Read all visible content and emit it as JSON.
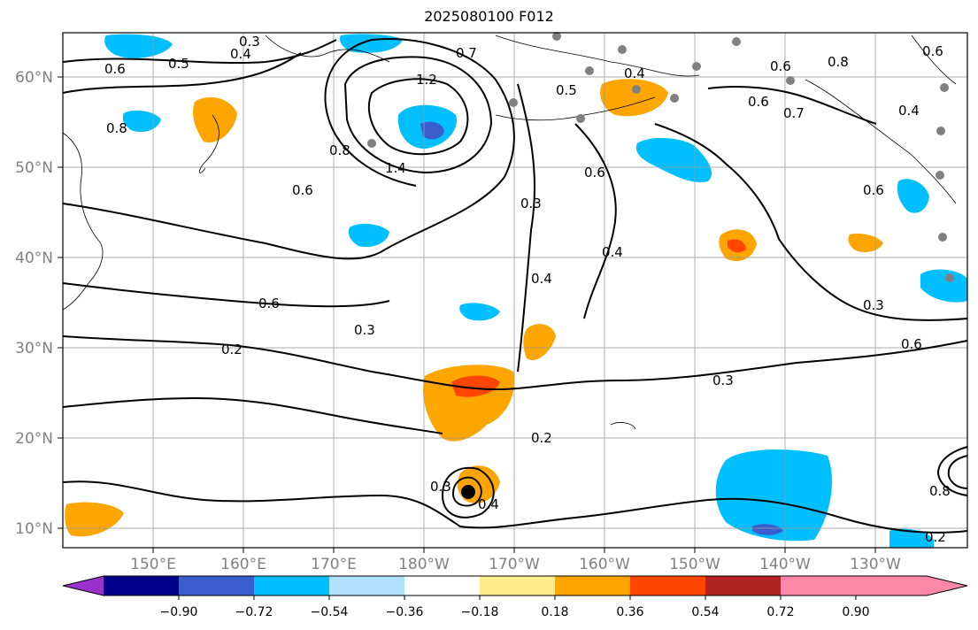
{
  "title": "2025080100 F012",
  "map": {
    "lon_ticks": [
      "150°E",
      "160°E",
      "170°E",
      "180°W",
      "170°W",
      "160°W",
      "150°W",
      "140°W",
      "130°W"
    ],
    "lat_ticks": [
      "60°N",
      "50°N",
      "40°N",
      "30°N",
      "20°N",
      "10°N"
    ],
    "grid": true,
    "contour_labels": [
      "0.3",
      "0.4",
      "0.5",
      "0.6",
      "0.6",
      "0.8",
      "0.8",
      "1.2",
      "1.4",
      "0.7",
      "0.4",
      "0.5",
      "0.6",
      "0.7",
      "0.6",
      "0.8",
      "0.6",
      "0.4",
      "0.6",
      "0.3",
      "0.4",
      "0.6",
      "0.2",
      "0.3",
      "0.2",
      "0.3",
      "0.6",
      "0.3",
      "0.2",
      "0.3",
      "0.4",
      "0.8",
      "0.6",
      "0.4"
    ]
  },
  "colorbar": {
    "ticks": [
      "−0.90",
      "−0.72",
      "−0.54",
      "−0.36",
      "−0.18",
      "0.18",
      "0.36",
      "0.54",
      "0.72",
      "0.90"
    ],
    "colors": [
      "#9932cc",
      "#00008b",
      "#3a5fcd",
      "#00bfff",
      "#b0e2ff",
      "#ffffff",
      "#ffec8b",
      "#ffa500",
      "#ff4500",
      "#b22222",
      "#ff88aa"
    ]
  }
}
